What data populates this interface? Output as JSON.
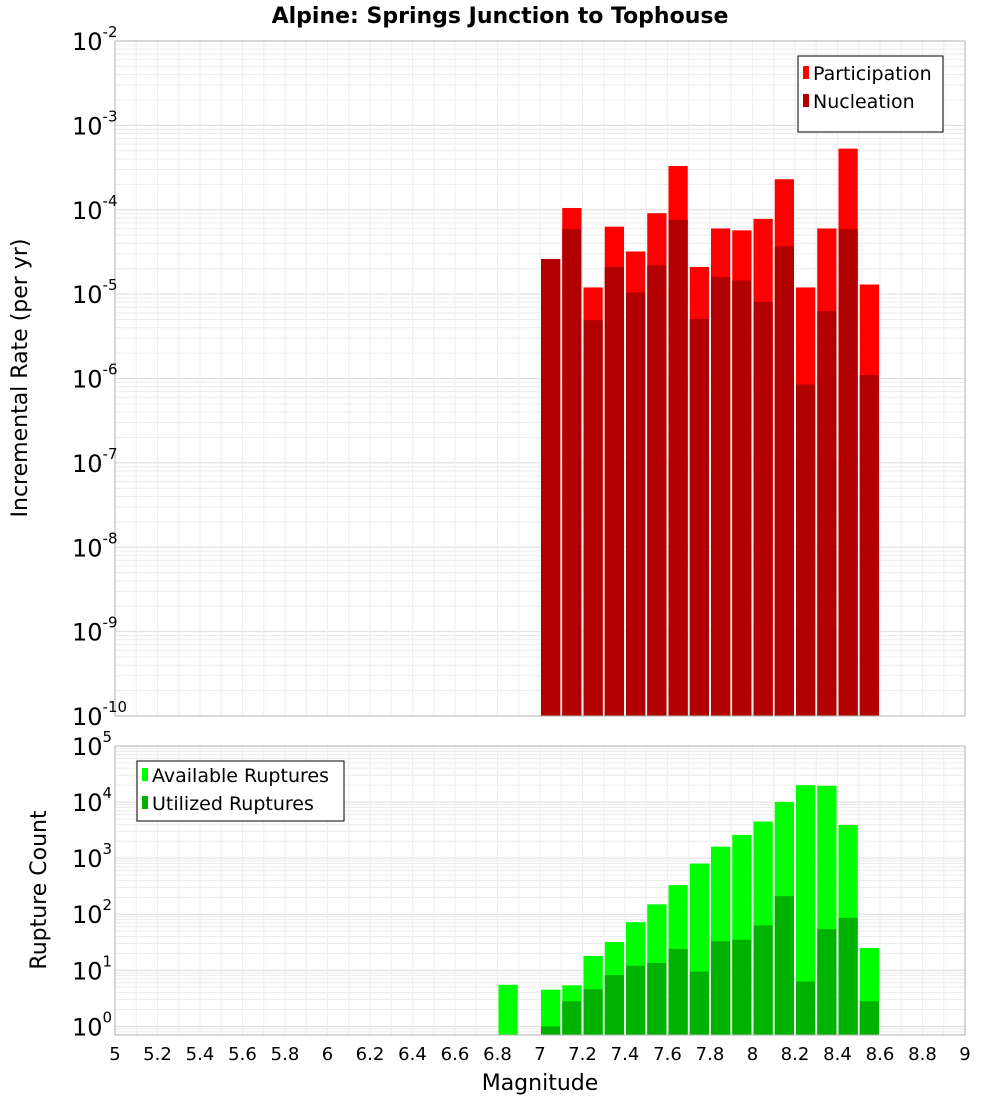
{
  "chart_data": {
    "title": "Alpine: Springs Junction to Tophouse",
    "xlabel": "Magnitude",
    "xlim": [
      5,
      9
    ],
    "xticks": [
      "5",
      "5.2",
      "5.4",
      "5.6",
      "5.8",
      "6",
      "6.2",
      "6.4",
      "6.6",
      "6.8",
      "7",
      "7.2",
      "7.4",
      "7.6",
      "7.8",
      "8",
      "8.2",
      "8.4",
      "8.6",
      "8.8",
      "9"
    ],
    "panels": [
      {
        "type": "bar",
        "scale": "log",
        "ylabel": "Incremental Rate (per yr)",
        "ylim": [
          1e-10,
          0.01
        ],
        "yticks": [
          {
            "base": "10",
            "exp": "-2"
          },
          {
            "base": "10",
            "exp": "-3"
          },
          {
            "base": "10",
            "exp": "-4"
          },
          {
            "base": "10",
            "exp": "-5"
          },
          {
            "base": "10",
            "exp": "-6"
          },
          {
            "base": "10",
            "exp": "-7"
          },
          {
            "base": "10",
            "exp": "-8"
          },
          {
            "base": "10",
            "exp": "-9"
          },
          {
            "base": "10",
            "exp": "-10"
          }
        ],
        "legend_position": "top-right",
        "x": [
          7.05,
          7.15,
          7.25,
          7.35,
          7.45,
          7.55,
          7.65,
          7.75,
          7.85,
          7.95,
          8.05,
          8.15,
          8.25,
          8.35,
          8.45,
          8.55
        ],
        "series": [
          {
            "name": "Participation",
            "color": "#ff0000",
            "values": [
              2.6e-05,
              0.000105,
              1.2e-05,
              6.3e-05,
              3.2e-05,
              9.1e-05,
              0.00033,
              2.1e-05,
              6e-05,
              5.7e-05,
              7.8e-05,
              0.00023,
              1.2e-05,
              6e-05,
              0.00053,
              1.3e-05
            ]
          },
          {
            "name": "Nucleation",
            "color": "#b20000",
            "values": [
              2.6e-05,
              5.9e-05,
              4.9e-06,
              2.1e-05,
              1.05e-05,
              2.2e-05,
              7.6e-05,
              5.1e-06,
              1.6e-05,
              1.45e-05,
              8.1e-06,
              3.7e-05,
              8.5e-07,
              6.3e-06,
              5.9e-05,
              1.1e-06
            ]
          }
        ]
      },
      {
        "type": "bar",
        "scale": "log",
        "ylabel": "Rupture Count",
        "ylim": [
          0.7,
          100000.0
        ],
        "yticks": [
          {
            "base": "10",
            "exp": "5"
          },
          {
            "base": "10",
            "exp": "4"
          },
          {
            "base": "10",
            "exp": "3"
          },
          {
            "base": "10",
            "exp": "2"
          },
          {
            "base": "10",
            "exp": "1"
          },
          {
            "base": "10",
            "exp": "0"
          }
        ],
        "legend_position": "top-left",
        "x": [
          6.85,
          7.05,
          7.15,
          7.25,
          7.35,
          7.45,
          7.55,
          7.65,
          7.75,
          7.85,
          7.95,
          8.05,
          8.15,
          8.25,
          8.35,
          8.45,
          8.55
        ],
        "series": [
          {
            "name": "Available Ruptures",
            "color": "#00ff00",
            "values": [
              5.5,
              4.5,
              5.4,
              18,
              32,
              72,
              150,
              330,
              800,
              1600,
              2600,
              4500,
              10000,
              20000,
              19500,
              3900,
              25
            ]
          },
          {
            "name": "Utilized Ruptures",
            "color": "#00b200",
            "values": [
              0,
              1,
              2.8,
              4.6,
              8.2,
              12,
              13.5,
              24,
              9.5,
              33,
              35,
              63,
              210,
              6.3,
              54,
              86,
              2.8
            ]
          }
        ]
      }
    ]
  }
}
